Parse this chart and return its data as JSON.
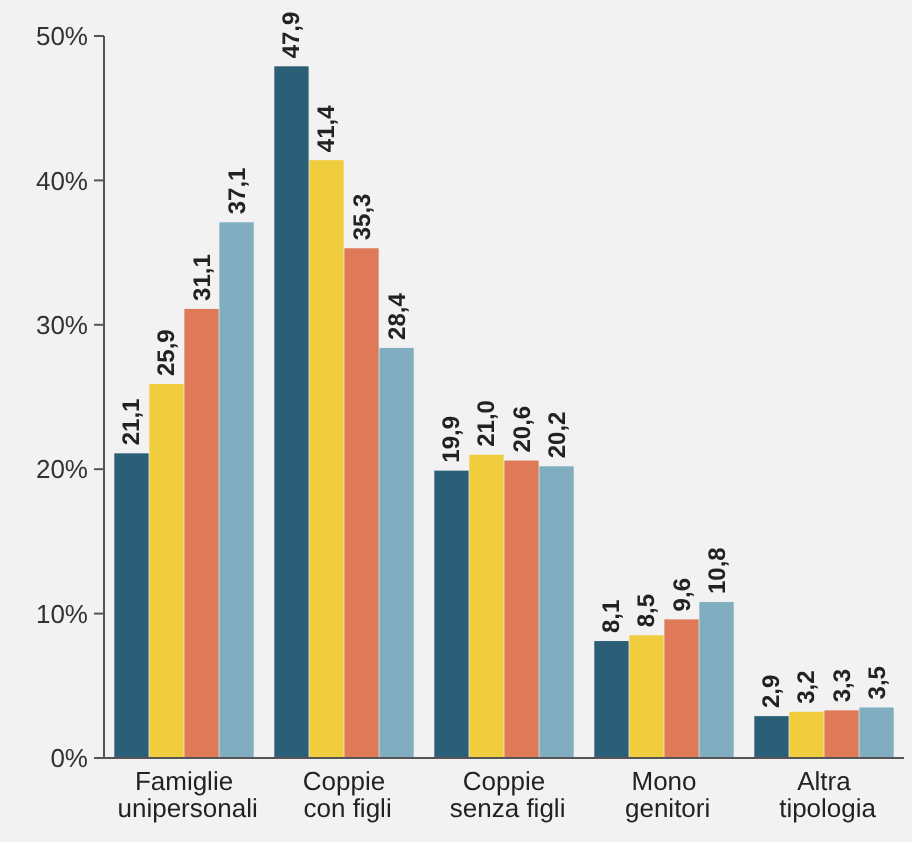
{
  "chart_data": {
    "type": "bar",
    "categories": [
      "Famiglie unipersonali",
      "Coppie con figli",
      "Coppie senza figli",
      "Mono genitori",
      "Altra tipologia"
    ],
    "series": [
      {
        "color": "#2b5f78",
        "values": [
          21.1,
          47.9,
          19.9,
          8.1,
          2.9
        ],
        "value_labels": [
          "21,1",
          "47,9",
          "19,9",
          "8,1",
          "2,9"
        ]
      },
      {
        "color": "#efcd3c",
        "values": [
          25.9,
          41.4,
          21.0,
          8.5,
          3.2
        ],
        "value_labels": [
          "25,9",
          "41,4",
          "21,0",
          "8,5",
          "3,2"
        ]
      },
      {
        "color": "#df7a58",
        "values": [
          31.1,
          35.3,
          20.6,
          9.6,
          3.3
        ],
        "value_labels": [
          "31,1",
          "35,3",
          "20,6",
          "9,6",
          "3,3"
        ]
      },
      {
        "color": "#80aec0",
        "values": [
          37.1,
          28.4,
          20.2,
          10.8,
          3.5
        ],
        "value_labels": [
          "37,1",
          "28,4",
          "20,2",
          "10,8",
          "3,5"
        ]
      }
    ],
    "ylim": [
      0,
      50
    ],
    "yticks": [
      {
        "value": 0,
        "label": "0%"
      },
      {
        "value": 10,
        "label": "10%"
      },
      {
        "value": 20,
        "label": "20%"
      },
      {
        "value": 30,
        "label": "30%"
      },
      {
        "value": 40,
        "label": "40%"
      },
      {
        "value": 50,
        "label": "50%"
      }
    ],
    "grid": false
  }
}
